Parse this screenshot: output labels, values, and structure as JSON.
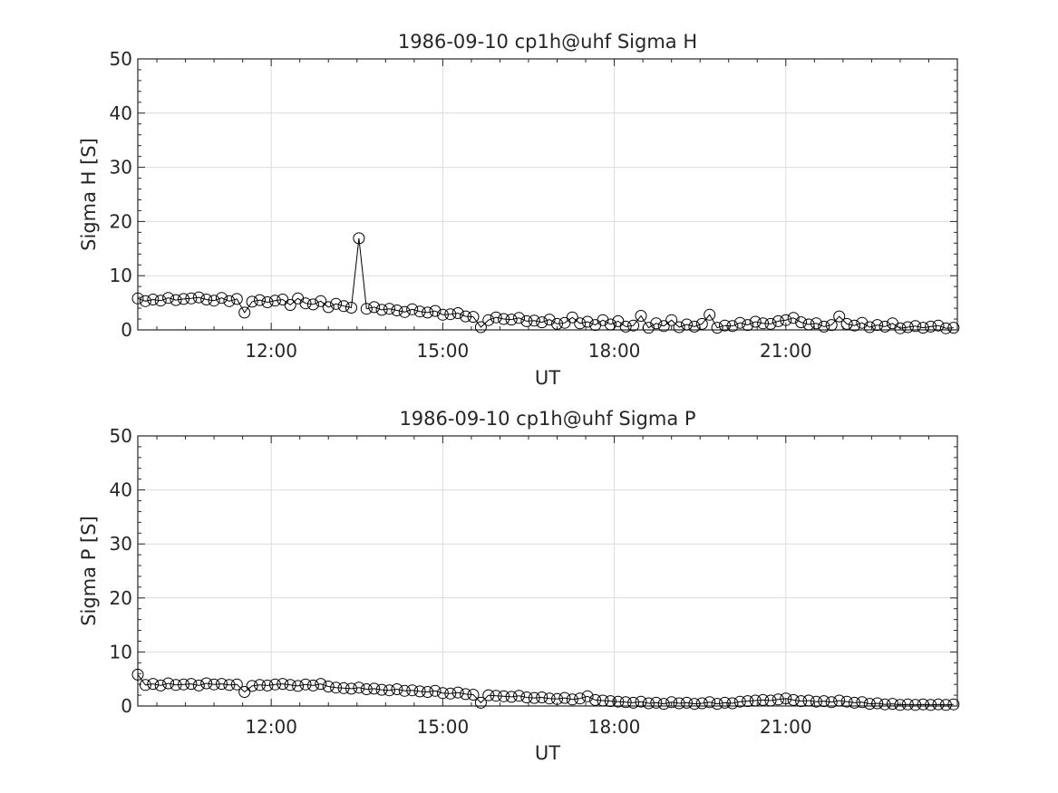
{
  "chart_data": [
    {
      "type": "line",
      "title": "1986-09-10  cp1h@uhf Sigma H",
      "xlabel": "UT",
      "ylabel": "Sigma H [S]",
      "xlim": [
        "09:40",
        "24:00"
      ],
      "ylim": [
        0,
        50
      ],
      "x_ticks": [
        "12:00",
        "15:00",
        "18:00",
        "21:00"
      ],
      "y_ticks": [
        0,
        10,
        20,
        30,
        40,
        50
      ],
      "grid": true,
      "marker": "open-circle",
      "series": [
        {
          "x": [
            "09:40",
            "09:48",
            "09:56",
            "10:04",
            "10:12",
            "10:20",
            "10:28",
            "10:36",
            "10:44",
            "10:52",
            "11:00",
            "11:08",
            "11:16",
            "11:24",
            "11:32",
            "11:40",
            "11:48",
            "11:56",
            "12:04",
            "12:12",
            "12:20",
            "12:28",
            "12:36",
            "12:44",
            "12:52",
            "13:00",
            "13:08",
            "13:16",
            "13:24",
            "13:32",
            "13:40",
            "13:48",
            "13:56",
            "14:04",
            "14:12",
            "14:20",
            "14:28",
            "14:36",
            "14:44",
            "14:52",
            "15:00",
            "15:08",
            "15:16",
            "15:24",
            "15:32",
            "15:40",
            "15:48",
            "15:56",
            "16:04",
            "16:12",
            "16:20",
            "16:28",
            "16:36",
            "16:44",
            "16:52",
            "17:00",
            "17:08",
            "17:16",
            "17:24",
            "17:32",
            "17:40",
            "17:48",
            "17:56",
            "18:04",
            "18:12",
            "18:20",
            "18:28",
            "18:36",
            "18:44",
            "18:52",
            "19:00",
            "19:08",
            "19:16",
            "19:24",
            "19:32",
            "19:40",
            "19:48",
            "19:56",
            "20:04",
            "20:12",
            "20:20",
            "20:28",
            "20:36",
            "20:44",
            "20:52",
            "21:00",
            "21:08",
            "21:16",
            "21:24",
            "21:32",
            "21:40",
            "21:48",
            "21:56",
            "22:04",
            "22:12",
            "22:20",
            "22:28",
            "22:36",
            "22:44",
            "22:52",
            "23:00",
            "23:08",
            "23:16",
            "23:24",
            "23:32",
            "23:40",
            "23:48",
            "23:56"
          ],
          "values": [
            5.8,
            5.3,
            5.6,
            5.4,
            5.9,
            5.5,
            5.7,
            5.8,
            6.0,
            5.6,
            5.4,
            5.9,
            5.3,
            5.7,
            3.2,
            5.2,
            5.5,
            5.1,
            5.4,
            5.6,
            4.6,
            5.8,
            4.9,
            4.7,
            5.3,
            4.2,
            4.8,
            4.4,
            4.1,
            16.9,
            3.9,
            4.2,
            3.7,
            3.9,
            3.6,
            3.3,
            3.8,
            3.4,
            3.2,
            3.5,
            2.8,
            2.9,
            3.1,
            2.5,
            2.4,
            0.5,
            1.8,
            2.3,
            2.0,
            1.9,
            2.2,
            1.6,
            1.7,
            1.4,
            1.9,
            1.1,
            1.3,
            2.3,
            1.2,
            1.5,
            0.9,
            1.8,
            1.0,
            1.6,
            0.6,
            0.8,
            2.6,
            0.4,
            1.2,
            0.7,
            1.8,
            0.5,
            1.0,
            0.6,
            1.1,
            2.8,
            0.4,
            0.8,
            0.7,
            1.3,
            0.9,
            1.5,
            1.2,
            1.1,
            1.6,
            1.8,
            2.2,
            1.4,
            1.0,
            1.2,
            0.6,
            0.9,
            2.5,
            1.1,
            0.8,
            1.3,
            0.5,
            0.9,
            0.6,
            1.2,
            0.3,
            0.5,
            0.7,
            0.4,
            0.6,
            0.8,
            0.3,
            0.4
          ]
        }
      ]
    },
    {
      "type": "line",
      "title": "1986-09-10  cp1h@uhf Sigma P",
      "xlabel": "UT",
      "ylabel": "Sigma P [S]",
      "xlim": [
        "09:40",
        "24:00"
      ],
      "ylim": [
        0,
        50
      ],
      "x_ticks": [
        "12:00",
        "15:00",
        "18:00",
        "21:00"
      ],
      "y_ticks": [
        0,
        10,
        20,
        30,
        40,
        50
      ],
      "grid": true,
      "marker": "open-circle",
      "series": [
        {
          "x": [
            "09:40",
            "09:48",
            "09:56",
            "10:04",
            "10:12",
            "10:20",
            "10:28",
            "10:36",
            "10:44",
            "10:52",
            "11:00",
            "11:08",
            "11:16",
            "11:24",
            "11:32",
            "11:40",
            "11:48",
            "11:56",
            "12:04",
            "12:12",
            "12:20",
            "12:28",
            "12:36",
            "12:44",
            "12:52",
            "13:00",
            "13:08",
            "13:16",
            "13:24",
            "13:32",
            "13:40",
            "13:48",
            "13:56",
            "14:04",
            "14:12",
            "14:20",
            "14:28",
            "14:36",
            "14:44",
            "14:52",
            "15:00",
            "15:08",
            "15:16",
            "15:24",
            "15:32",
            "15:40",
            "15:48",
            "15:56",
            "16:04",
            "16:12",
            "16:20",
            "16:28",
            "16:36",
            "16:44",
            "16:52",
            "17:00",
            "17:08",
            "17:16",
            "17:24",
            "17:32",
            "17:40",
            "17:48",
            "17:56",
            "18:04",
            "18:12",
            "18:20",
            "18:28",
            "18:36",
            "18:44",
            "18:52",
            "19:00",
            "19:08",
            "19:16",
            "19:24",
            "19:32",
            "19:40",
            "19:48",
            "19:56",
            "20:04",
            "20:12",
            "20:20",
            "20:28",
            "20:36",
            "20:44",
            "20:52",
            "21:00",
            "21:08",
            "21:16",
            "21:24",
            "21:32",
            "21:40",
            "21:48",
            "21:56",
            "22:04",
            "22:12",
            "22:20",
            "22:28",
            "22:36",
            "22:44",
            "22:52",
            "23:00",
            "23:08",
            "23:16",
            "23:24",
            "23:32",
            "23:40",
            "23:48",
            "23:56"
          ],
          "values": [
            5.8,
            3.9,
            4.1,
            3.8,
            4.2,
            3.9,
            4.0,
            4.1,
            3.8,
            4.2,
            4.0,
            4.1,
            3.9,
            4.0,
            2.6,
            3.7,
            3.9,
            3.8,
            4.0,
            4.1,
            3.9,
            3.7,
            4.0,
            3.8,
            4.1,
            3.6,
            3.4,
            3.3,
            3.2,
            3.4,
            3.1,
            3.2,
            3.0,
            2.9,
            3.1,
            2.8,
            2.9,
            2.7,
            2.6,
            2.8,
            2.4,
            2.3,
            2.5,
            2.2,
            2.1,
            0.6,
            2.0,
            1.9,
            1.8,
            1.7,
            1.9,
            1.6,
            1.5,
            1.6,
            1.4,
            1.3,
            1.5,
            1.2,
            1.4,
            1.8,
            1.1,
            1.0,
            0.9,
            0.8,
            0.7,
            0.6,
            0.8,
            0.5,
            0.6,
            0.4,
            0.7,
            0.5,
            0.6,
            0.4,
            0.5,
            0.7,
            0.4,
            0.6,
            0.5,
            0.8,
            0.9,
            1.0,
            1.1,
            1.0,
            1.2,
            1.4,
            1.1,
            0.9,
            1.0,
            0.8,
            0.9,
            0.7,
            1.0,
            0.8,
            0.6,
            0.7,
            0.4,
            0.5,
            0.3,
            0.4,
            0.2,
            0.3,
            0.2,
            0.3,
            0.2,
            0.3,
            0.2,
            0.3
          ]
        }
      ]
    }
  ]
}
